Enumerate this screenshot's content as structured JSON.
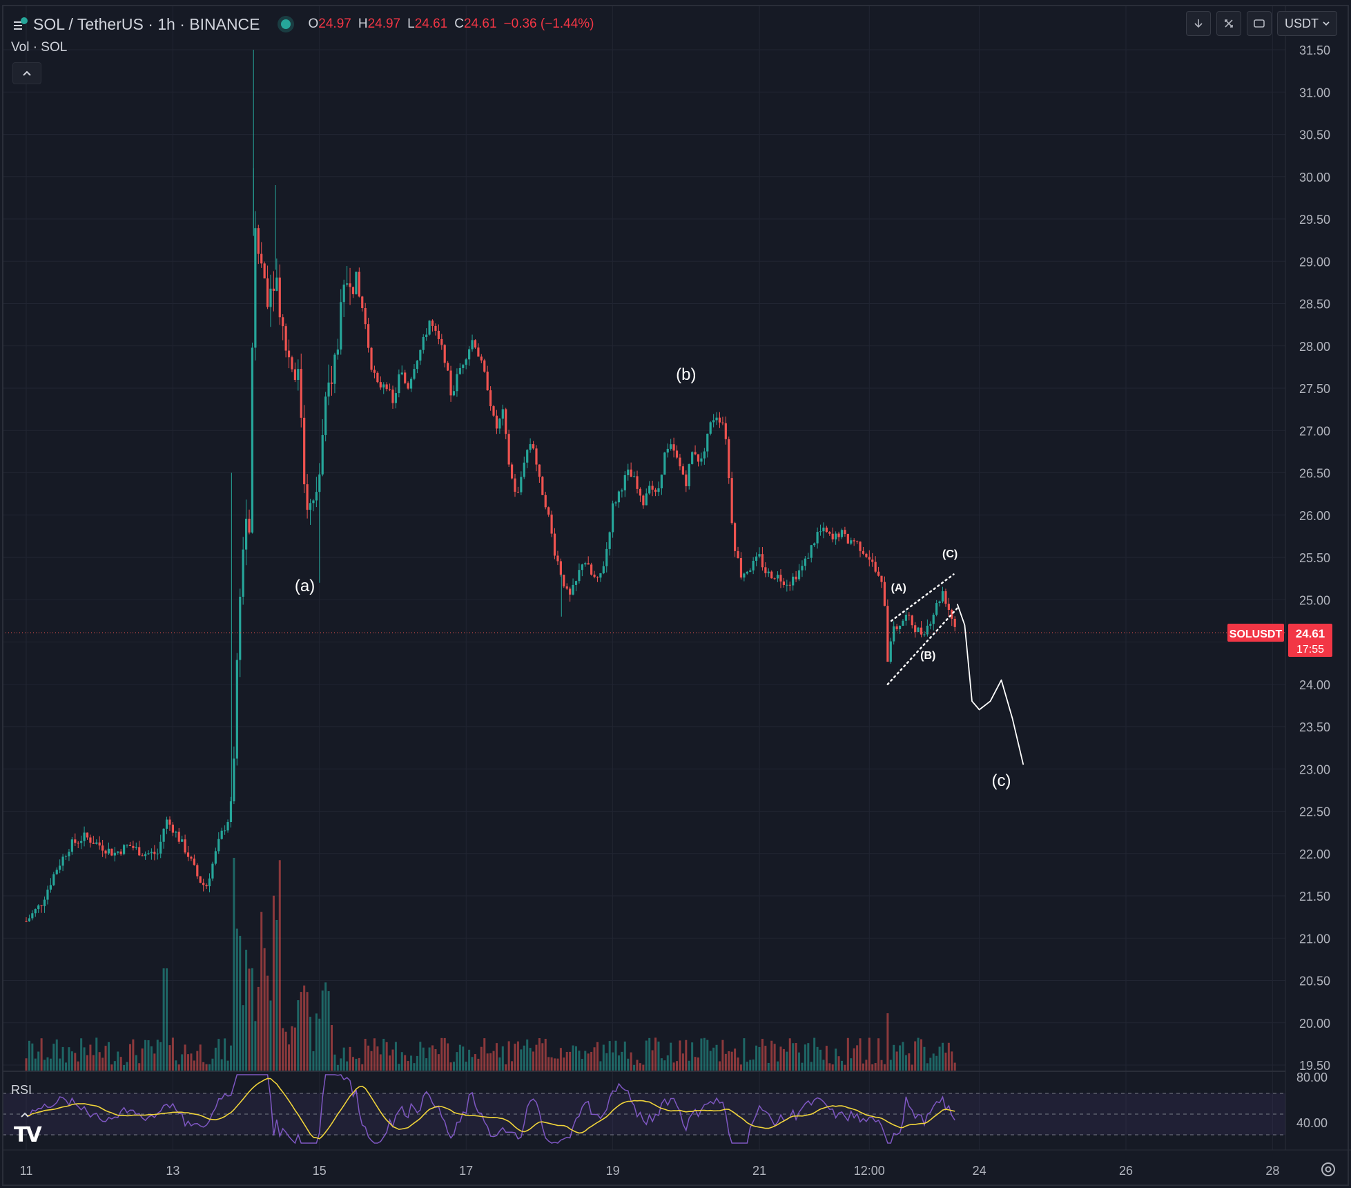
{
  "header": {
    "symbol_title": "SOL / TetherUS · 1h · BINANCE",
    "ohlc": [
      {
        "key": "O",
        "value": "24.97"
      },
      {
        "key": "H",
        "value": "24.97"
      },
      {
        "key": "L",
        "value": "24.61"
      },
      {
        "key": "C",
        "value": "24.61"
      }
    ],
    "change": "−0.36 (−1.44%)",
    "volume_label": "Vol · SOL",
    "currency": "USDT"
  },
  "icons": [
    "symbol-logo-icon",
    "market-open-dot-icon",
    "collapse-chevron-icon",
    "arrow-down-icon",
    "cross-arrows-icon",
    "rotate-icon",
    "chevron-down-icon",
    "settings-gear-icon",
    "tradingview-logo-icon"
  ],
  "colors": {
    "background": "#161a25",
    "up": "#26a69a",
    "down": "#ef5350",
    "rsi_line": "#7e57c2",
    "rsi_ma": "#f0d43a",
    "price_badge": "#f23645",
    "annotation": "#ffffff"
  },
  "chart_data": {
    "type": "candlestick",
    "symbol": "SOLUSDT",
    "interval": "1h",
    "price_axis": {
      "range": [
        19.5,
        31.5
      ],
      "ticks": [
        "31.50",
        "31.00",
        "30.50",
        "30.00",
        "29.50",
        "29.00",
        "28.50",
        "28.00",
        "27.50",
        "27.00",
        "26.50",
        "26.00",
        "25.50",
        "25.00",
        "24.50",
        "24.00",
        "23.50",
        "23.00",
        "22.50",
        "22.00",
        "21.50",
        "21.00",
        "20.50",
        "20.00",
        "19.50"
      ]
    },
    "time_axis": {
      "ticks": [
        "11",
        "13",
        "15",
        "17",
        "19",
        "21",
        "12:00",
        "24",
        "26",
        "28"
      ]
    },
    "last_price": {
      "symbol_label": "SOLUSDT",
      "price": "24.61",
      "countdown": "17:55"
    },
    "price_path": [
      [
        11.0,
        21.2
      ],
      [
        11.2,
        21.4
      ],
      [
        11.4,
        21.8
      ],
      [
        11.6,
        22.1
      ],
      [
        11.8,
        22.2
      ],
      [
        12.0,
        22.1
      ],
      [
        12.2,
        22.0
      ],
      [
        12.4,
        22.1
      ],
      [
        12.6,
        22.0
      ],
      [
        12.8,
        22.0
      ],
      [
        12.9,
        22.4
      ],
      [
        13.0,
        22.3
      ],
      [
        13.2,
        22.0
      ],
      [
        13.35,
        21.7
      ],
      [
        13.45,
        21.6
      ],
      [
        13.55,
        21.9
      ],
      [
        13.65,
        22.2
      ],
      [
        13.7,
        22.3
      ],
      [
        13.75,
        22.4
      ],
      [
        13.8,
        22.6
      ],
      [
        13.85,
        23.5
      ],
      [
        13.9,
        25.0
      ],
      [
        14.0,
        26.0
      ],
      [
        14.05,
        25.6
      ],
      [
        14.1,
        29.3
      ],
      [
        14.2,
        29.0
      ],
      [
        14.3,
        28.6
      ],
      [
        14.4,
        28.9
      ],
      [
        14.5,
        28.2
      ],
      [
        14.6,
        27.8
      ],
      [
        14.7,
        27.7
      ],
      [
        14.75,
        27.2
      ],
      [
        14.8,
        26.3
      ],
      [
        14.9,
        26.0
      ],
      [
        15.0,
        26.5
      ],
      [
        15.1,
        27.4
      ],
      [
        15.2,
        27.8
      ],
      [
        15.3,
        28.4
      ],
      [
        15.4,
        28.9
      ],
      [
        15.5,
        28.7
      ],
      [
        15.6,
        28.4
      ],
      [
        15.7,
        27.8
      ],
      [
        15.8,
        27.5
      ],
      [
        15.9,
        27.6
      ],
      [
        16.0,
        27.3
      ],
      [
        16.1,
        27.7
      ],
      [
        16.2,
        27.5
      ],
      [
        16.3,
        27.8
      ],
      [
        16.4,
        28.0
      ],
      [
        16.5,
        28.3
      ],
      [
        16.6,
        28.1
      ],
      [
        16.7,
        27.9
      ],
      [
        16.8,
        27.4
      ],
      [
        16.9,
        27.7
      ],
      [
        17.0,
        27.9
      ],
      [
        17.1,
        28.1
      ],
      [
        17.2,
        27.8
      ],
      [
        17.3,
        27.5
      ],
      [
        17.4,
        27.0
      ],
      [
        17.5,
        27.2
      ],
      [
        17.6,
        26.5
      ],
      [
        17.7,
        26.2
      ],
      [
        17.8,
        26.7
      ],
      [
        17.9,
        26.9
      ],
      [
        18.0,
        26.4
      ],
      [
        18.1,
        26.1
      ],
      [
        18.2,
        25.6
      ],
      [
        18.3,
        25.3
      ],
      [
        18.4,
        25.0
      ],
      [
        18.5,
        25.2
      ],
      [
        18.6,
        25.5
      ],
      [
        18.7,
        25.3
      ],
      [
        18.8,
        25.2
      ],
      [
        18.9,
        25.5
      ],
      [
        19.0,
        26.1
      ],
      [
        19.1,
        26.3
      ],
      [
        19.2,
        26.5
      ],
      [
        19.3,
        26.4
      ],
      [
        19.4,
        26.1
      ],
      [
        19.5,
        26.4
      ],
      [
        19.6,
        26.2
      ],
      [
        19.7,
        26.7
      ],
      [
        19.8,
        26.8
      ],
      [
        19.9,
        26.6
      ],
      [
        20.0,
        26.4
      ],
      [
        20.1,
        26.8
      ],
      [
        20.2,
        26.6
      ],
      [
        20.3,
        27.0
      ],
      [
        20.4,
        27.2
      ],
      [
        20.5,
        27.1
      ],
      [
        20.55,
        26.9
      ],
      [
        20.6,
        26.2
      ],
      [
        20.65,
        25.7
      ],
      [
        20.75,
        25.3
      ],
      [
        20.9,
        25.4
      ],
      [
        21.0,
        25.5
      ],
      [
        21.1,
        25.3
      ],
      [
        21.2,
        25.3
      ],
      [
        21.4,
        25.2
      ],
      [
        21.6,
        25.4
      ],
      [
        21.7,
        25.6
      ],
      [
        21.8,
        25.8
      ],
      [
        21.9,
        25.8
      ],
      [
        22.0,
        25.7
      ],
      [
        22.1,
        25.8
      ],
      [
        22.2,
        25.7
      ],
      [
        22.3,
        25.7
      ],
      [
        22.4,
        25.6
      ],
      [
        22.5,
        25.5
      ],
      [
        22.6,
        25.3
      ],
      [
        22.7,
        25.1
      ],
      [
        22.75,
        24.3
      ],
      [
        22.8,
        24.6
      ],
      [
        22.9,
        24.7
      ],
      [
        23.0,
        24.8
      ],
      [
        23.1,
        24.7
      ],
      [
        23.2,
        24.6
      ],
      [
        23.3,
        24.7
      ],
      [
        23.4,
        24.9
      ],
      [
        23.5,
        25.1
      ],
      [
        23.6,
        24.85
      ],
      [
        23.7,
        24.61
      ]
    ],
    "wicks": [
      [
        14.1,
        31.5
      ],
      [
        14.1,
        30.1
      ],
      [
        14.4,
        29.9
      ],
      [
        13.8,
        26.5
      ],
      [
        15.0,
        25.2
      ],
      [
        18.3,
        24.8
      ]
    ],
    "annotations": [
      {
        "text": "(a)",
        "x": 14.8,
        "y": 25.1
      },
      {
        "text": "(b)",
        "x": 20.0,
        "y": 27.6
      },
      {
        "text": "(c)",
        "x": 24.3,
        "y": 22.8
      },
      {
        "text": "(A)",
        "x": 22.9,
        "y": 25.1
      },
      {
        "text": "(B)",
        "x": 23.3,
        "y": 24.3
      },
      {
        "text": "(C)",
        "x": 23.6,
        "y": 25.5
      }
    ],
    "channel": {
      "lower": [
        [
          22.75,
          24.0
        ],
        [
          23.7,
          24.9
        ]
      ],
      "upper": [
        [
          22.8,
          24.75
        ],
        [
          23.65,
          25.3
        ]
      ]
    },
    "projection": [
      [
        23.7,
        24.95
      ],
      [
        23.8,
        24.7
      ],
      [
        23.9,
        23.8
      ],
      [
        24.0,
        23.7
      ],
      [
        24.15,
        23.8
      ],
      [
        24.3,
        24.05
      ],
      [
        24.45,
        23.6
      ],
      [
        24.6,
        23.05
      ]
    ],
    "rsi": {
      "label": "RSI",
      "ticks": [
        "80.00",
        "40.00"
      ],
      "bands": [
        70,
        30
      ]
    }
  }
}
